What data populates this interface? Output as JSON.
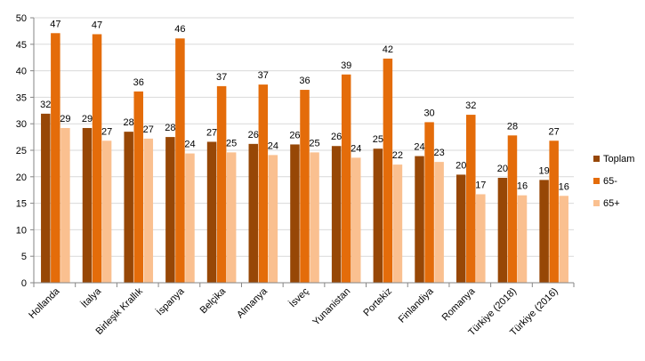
{
  "chart_data": {
    "type": "bar",
    "categories": [
      "Hollanda",
      "İtalya",
      "Birleşik Krallık",
      "İspanya",
      "Belçika",
      "Almanya",
      "İsveç",
      "Yunanistan",
      "Portekiz",
      "Finlandiya",
      "Romanya",
      "Türkiye (2018)",
      "Türkiye (2016)"
    ],
    "series": [
      {
        "name": "Toplam",
        "color": "#974706",
        "values": [
          32,
          29,
          28,
          28,
          27,
          26,
          26,
          26,
          25,
          24,
          20,
          20,
          19
        ],
        "heights": [
          31.9,
          29.2,
          28.5,
          27.5,
          26.6,
          26.2,
          26.1,
          25.8,
          25.3,
          23.9,
          20.4,
          19.8,
          19.4
        ]
      },
      {
        "name": "65-",
        "color": "#E46C0A",
        "values": [
          47,
          47,
          36,
          46,
          37,
          37,
          36,
          39,
          42,
          30,
          32,
          28,
          27
        ],
        "heights": [
          47.1,
          46.9,
          36.1,
          46.1,
          37.1,
          37.4,
          36.4,
          39.3,
          42.3,
          30.3,
          31.7,
          27.8,
          26.8
        ]
      },
      {
        "name": "65+",
        "color": "#FAC090",
        "values": [
          29,
          27,
          27,
          24,
          25,
          24,
          25,
          24,
          22,
          23,
          17,
          16,
          16
        ],
        "heights": [
          29.2,
          26.8,
          27.2,
          24.4,
          24.6,
          24.1,
          24.6,
          23.6,
          22.3,
          22.8,
          16.7,
          16.5,
          16.4
        ]
      }
    ],
    "ylim": [
      0,
      50
    ],
    "yticks": [
      0,
      5,
      10,
      15,
      20,
      25,
      30,
      35,
      40,
      45,
      50
    ],
    "grid": true,
    "legend": "right",
    "title": "",
    "xlabel": "",
    "ylabel": ""
  }
}
